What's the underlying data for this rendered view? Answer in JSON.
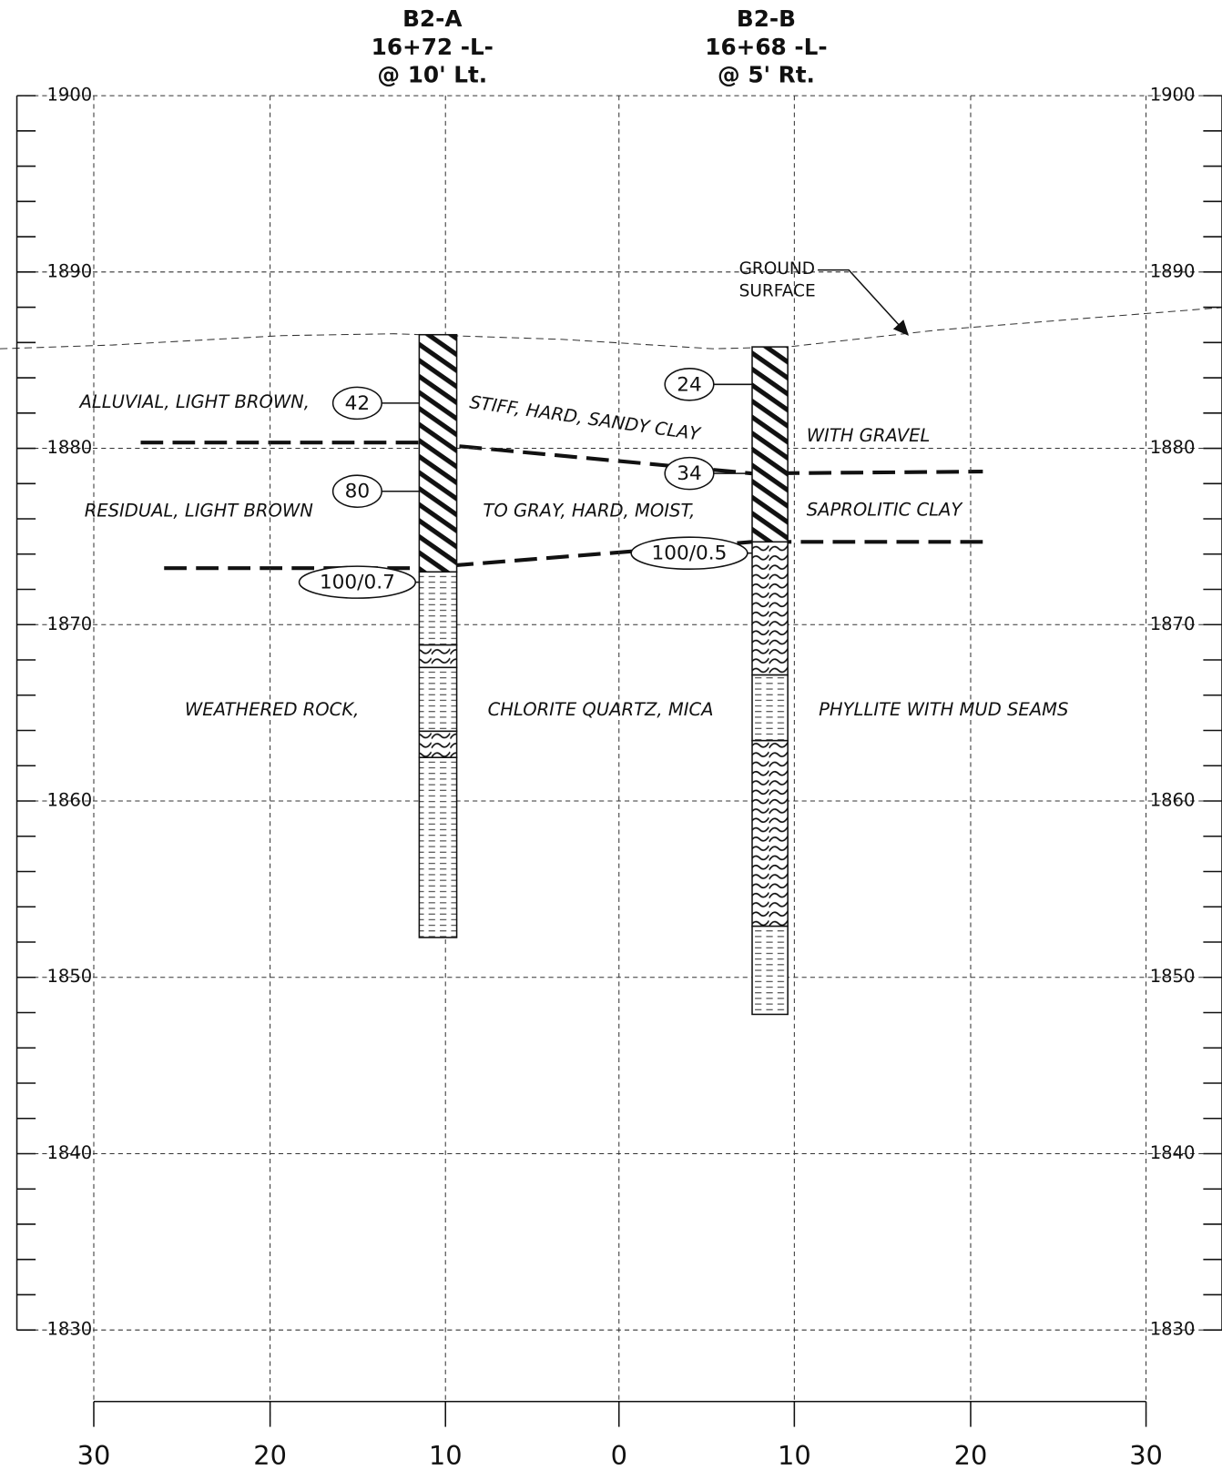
{
  "borings": [
    {
      "name": "B2-A",
      "station": "16+72 -L-",
      "offset": "@ 10' Lt.",
      "blow_counts": [
        "42",
        "80",
        "100/0.7"
      ]
    },
    {
      "name": "B2-B",
      "station": "16+68 -L-",
      "offset": "@ 5' Rt.",
      "blow_counts": [
        "24",
        "34",
        "100/0.5"
      ]
    }
  ],
  "elevations": [
    "1900",
    "1890",
    "1880",
    "1870",
    "1860",
    "1850",
    "1840",
    "1830"
  ],
  "offsets": [
    "30",
    "20",
    "10",
    "0",
    "10",
    "20",
    "30"
  ],
  "annotation": [
    "GROUND",
    "SURFACE"
  ],
  "strata": [
    [
      "ALLUVIAL, LIGHT BROWN,",
      "STIFF, HARD, SANDY CLAY",
      "WITH GRAVEL"
    ],
    [
      "RESIDUAL, LIGHT BROWN",
      "TO GRAY, HARD, MOIST,",
      "SAPROLITIC CLAY"
    ],
    [
      "WEATHERED ROCK,",
      "CHLORITE QUARTZ, MICA",
      "PHYLLITE WITH MUD SEAMS"
    ]
  ]
}
